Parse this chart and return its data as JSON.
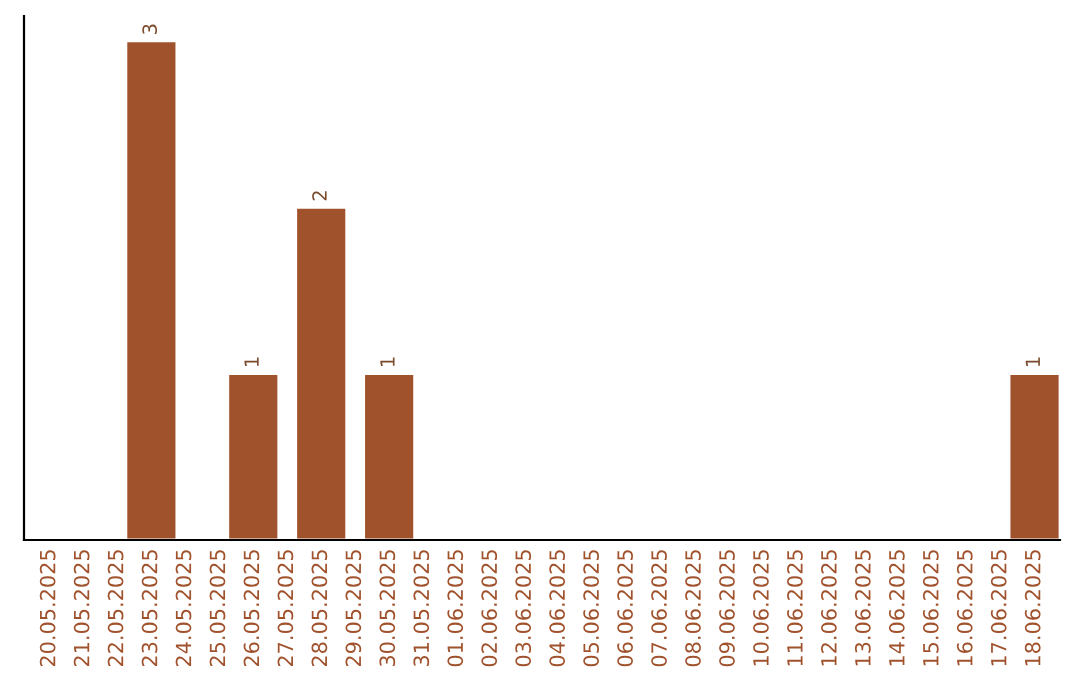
{
  "chart_data": {
    "type": "bar",
    "categories": [
      "20.05.2025",
      "21.05.2025",
      "22.05.2025",
      "23.05.2025",
      "24.05.2025",
      "25.05.2025",
      "26.05.2025",
      "27.05.2025",
      "28.05.2025",
      "29.05.2025",
      "30.05.2025",
      "31.05.2025",
      "01.06.2025",
      "02.06.2025",
      "03.06.2025",
      "04.06.2025",
      "05.06.2025",
      "06.06.2025",
      "07.06.2025",
      "08.06.2025",
      "09.06.2025",
      "10.06.2025",
      "11.06.2025",
      "12.06.2025",
      "13.06.2025",
      "14.06.2025",
      "15.06.2025",
      "16.06.2025",
      "17.06.2025",
      "18.06.2025"
    ],
    "values": [
      0,
      0,
      0,
      3,
      0,
      0,
      1,
      0,
      2,
      0,
      1,
      0,
      0,
      0,
      0,
      0,
      0,
      0,
      0,
      0,
      0,
      0,
      0,
      0,
      0,
      0,
      0,
      0,
      0,
      1
    ],
    "color": "#a0522d",
    "value_labels": [
      null,
      null,
      null,
      "3",
      null,
      null,
      "1",
      null,
      "2",
      null,
      "1",
      null,
      null,
      null,
      null,
      null,
      null,
      null,
      null,
      null,
      null,
      null,
      null,
      null,
      null,
      null,
      null,
      null,
      null,
      "1"
    ],
    "tick_labels": "x",
    "grid": false,
    "legend": false
  }
}
